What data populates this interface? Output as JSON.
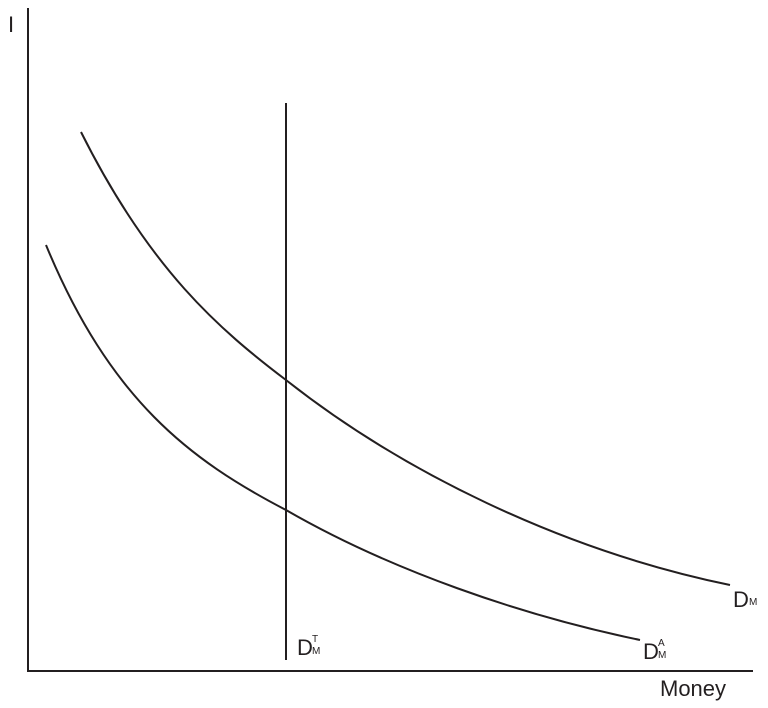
{
  "axes": {
    "y_label": "I",
    "x_label": "Money"
  },
  "curves": {
    "dm": {
      "main": "D",
      "sub": "M",
      "sup": ""
    },
    "dma": {
      "main": "D",
      "sub": "M",
      "sup": "A"
    },
    "dmt": {
      "main": "D",
      "sub": "M",
      "sup": "T"
    }
  },
  "colors": {
    "line": "#231f20"
  }
}
